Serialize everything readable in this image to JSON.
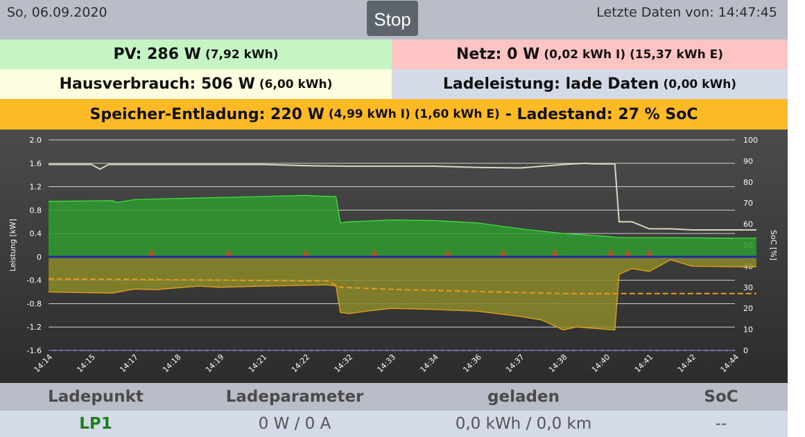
{
  "header": {
    "date": "So, 06.09.2020",
    "stop_label": "Stop",
    "last_data": "Letzte Daten von: 14:47:45"
  },
  "pv": {
    "main": "PV: 286 W",
    "detail": "(7,92 kWh)"
  },
  "netz": {
    "main": "Netz: 0 W",
    "detail": "(0,02 kWh I) (15,37 kWh E)"
  },
  "hausverbrauch": {
    "main": "Hausverbrauch: 506 W",
    "detail": "(6,00 kWh)"
  },
  "ladeleistung": {
    "main": "Ladeleistung: lade Daten",
    "detail": "(0,00 kWh)"
  },
  "speicher": {
    "main": "Speicher-Entladung: 220 W",
    "detail": "(4,99 kWh I) (1,60 kWh E)",
    "soc": "- Ladestand: 27 % SoC"
  },
  "chart_data": {
    "type": "area",
    "ylabel": "Leistung [kW]",
    "y2label": "SoC [%]",
    "ylim": [
      -1.6,
      2.0
    ],
    "y2lim": [
      0,
      100
    ],
    "yticks": [
      "2.0",
      "1.6",
      "1.2",
      "0.8",
      "0.4",
      "0",
      "-0.4",
      "-0.8",
      "-1.2",
      "-1.6"
    ],
    "y2ticks": [
      "100",
      "90",
      "80",
      "70",
      "60",
      "50",
      "40",
      "30",
      "20",
      "10",
      "0"
    ],
    "xticks": [
      "14:14",
      "14:15",
      "14:17",
      "14:18",
      "14:19",
      "14:21",
      "14:22",
      "14:32",
      "14:33",
      "14:34",
      "14:36",
      "14:37",
      "14:38",
      "14:40",
      "14:41",
      "14:42",
      "14:44"
    ],
    "grid": true,
    "colors": {
      "pv": "#2f9b2f",
      "pv_line": "#3ee03e",
      "speicher": "#8b8a2a",
      "speicher_line": "#e8a21a",
      "haus": "#d8d8c0",
      "soc": "#e89a1e",
      "netz": "#1e2aa0",
      "lade": "#c05020"
    },
    "series": [
      {
        "name": "PV",
        "x": [
          0,
          1.5,
          1.6,
          2,
          6,
          6.3,
          6.7,
          6.8,
          7,
          8,
          9,
          10,
          11,
          12,
          13,
          13.3,
          14,
          16,
          16.5
        ],
        "values": [
          0.95,
          0.96,
          0.93,
          0.98,
          1.05,
          1.04,
          1.03,
          0.58,
          0.6,
          0.63,
          0.62,
          0.58,
          0.48,
          0.4,
          0.35,
          0.33,
          0.33,
          0.32,
          0.32
        ]
      },
      {
        "name": "Speicher",
        "x": [
          0,
          1.5,
          2,
          2.5,
          3.5,
          4,
          5,
          6.5,
          6.7,
          6.8,
          7,
          7.5,
          8,
          9,
          10,
          11,
          11.5,
          12,
          12.3,
          13.2,
          13.3,
          13.6,
          14,
          14.5,
          15,
          16,
          16.5
        ],
        "values": [
          -0.6,
          -0.62,
          -0.55,
          -0.56,
          -0.5,
          -0.52,
          -0.5,
          -0.48,
          -0.5,
          -0.95,
          -0.97,
          -0.92,
          -0.88,
          -0.9,
          -0.93,
          -1.02,
          -1.08,
          -1.25,
          -1.2,
          -1.25,
          -0.3,
          -0.2,
          -0.25,
          -0.05,
          -0.16,
          -0.17,
          -0.17
        ]
      },
      {
        "name": "Hausverbrauch",
        "x": [
          0,
          1,
          1.2,
          1.4,
          2,
          3,
          4,
          5,
          6,
          7,
          8,
          9,
          10,
          11,
          12,
          12.5,
          12.7,
          13,
          13.2,
          13.3,
          13.6,
          14,
          14.5,
          15,
          16,
          16.5
        ],
        "values": [
          1.58,
          1.58,
          1.5,
          1.58,
          1.58,
          1.58,
          1.58,
          1.58,
          1.56,
          1.55,
          1.55,
          1.55,
          1.53,
          1.52,
          1.58,
          1.6,
          1.59,
          1.59,
          1.59,
          0.6,
          0.6,
          0.48,
          0.48,
          0.46,
          0.46,
          0.46
        ]
      },
      {
        "name": "SoC",
        "x": [
          0,
          6.5,
          6.8,
          8,
          10,
          12,
          16.5
        ],
        "values": [
          34,
          33,
          30,
          29,
          28,
          27,
          27
        ]
      },
      {
        "name": "Netz",
        "x": [
          0,
          16.5
        ],
        "values": [
          0,
          0
        ]
      }
    ]
  },
  "ladepunkte": {
    "headers": [
      "Ladepunkt",
      "Ladeparameter",
      "geladen",
      "SoC"
    ],
    "rows": [
      {
        "name": "LP1",
        "param": "0 W / 0 A",
        "geladen": "0,0 kWh / 0,0 km",
        "soc": "--"
      }
    ]
  }
}
